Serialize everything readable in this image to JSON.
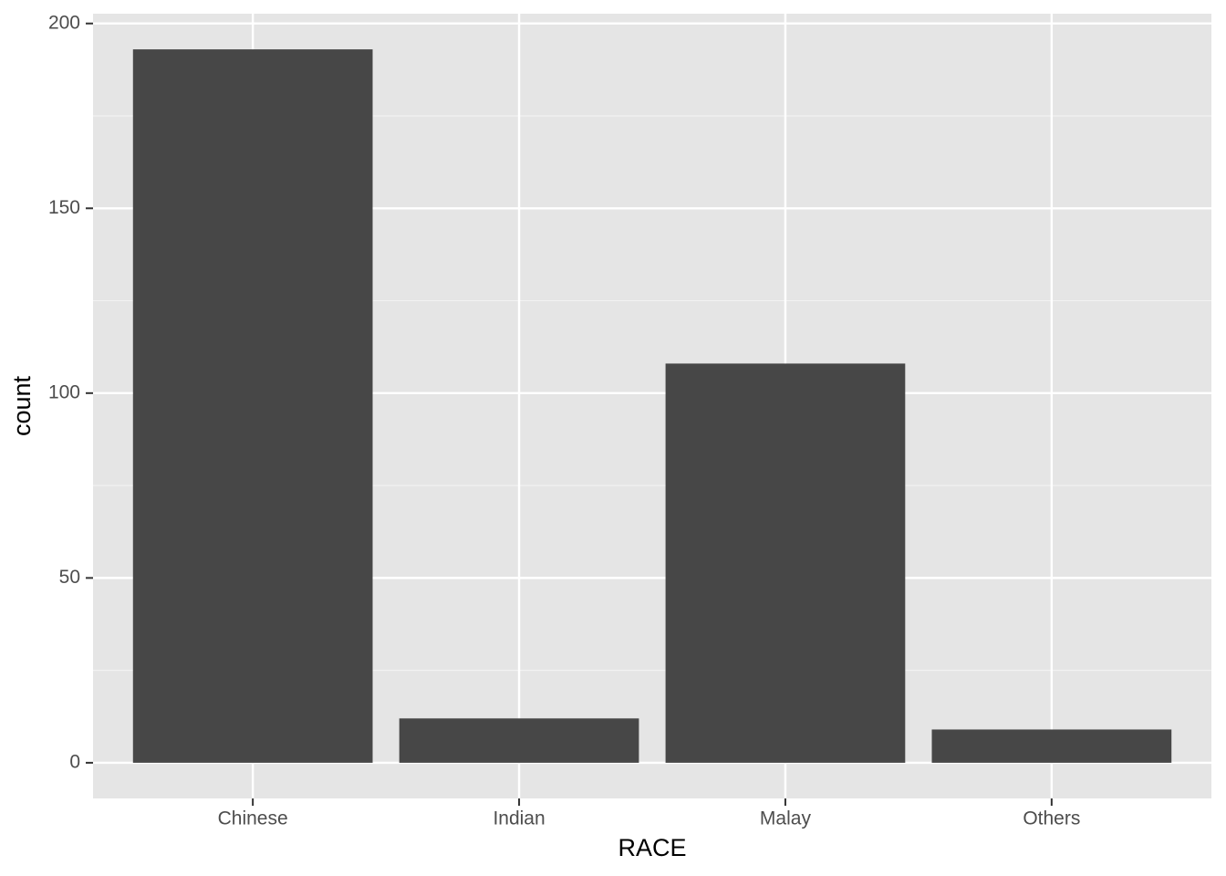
{
  "chart_data": {
    "type": "bar",
    "x_label": "RACE",
    "y_label": "count",
    "categories": [
      "Chinese",
      "Indian",
      "Malay",
      "Others"
    ],
    "values": [
      193,
      12,
      108,
      9
    ],
    "color": "#474747",
    "ylim": [
      -9.65,
      202.65
    ],
    "yticks": [
      0,
      50,
      100,
      150,
      200
    ],
    "minor_yticks": [
      25,
      75,
      125,
      175
    ],
    "grid": true
  }
}
